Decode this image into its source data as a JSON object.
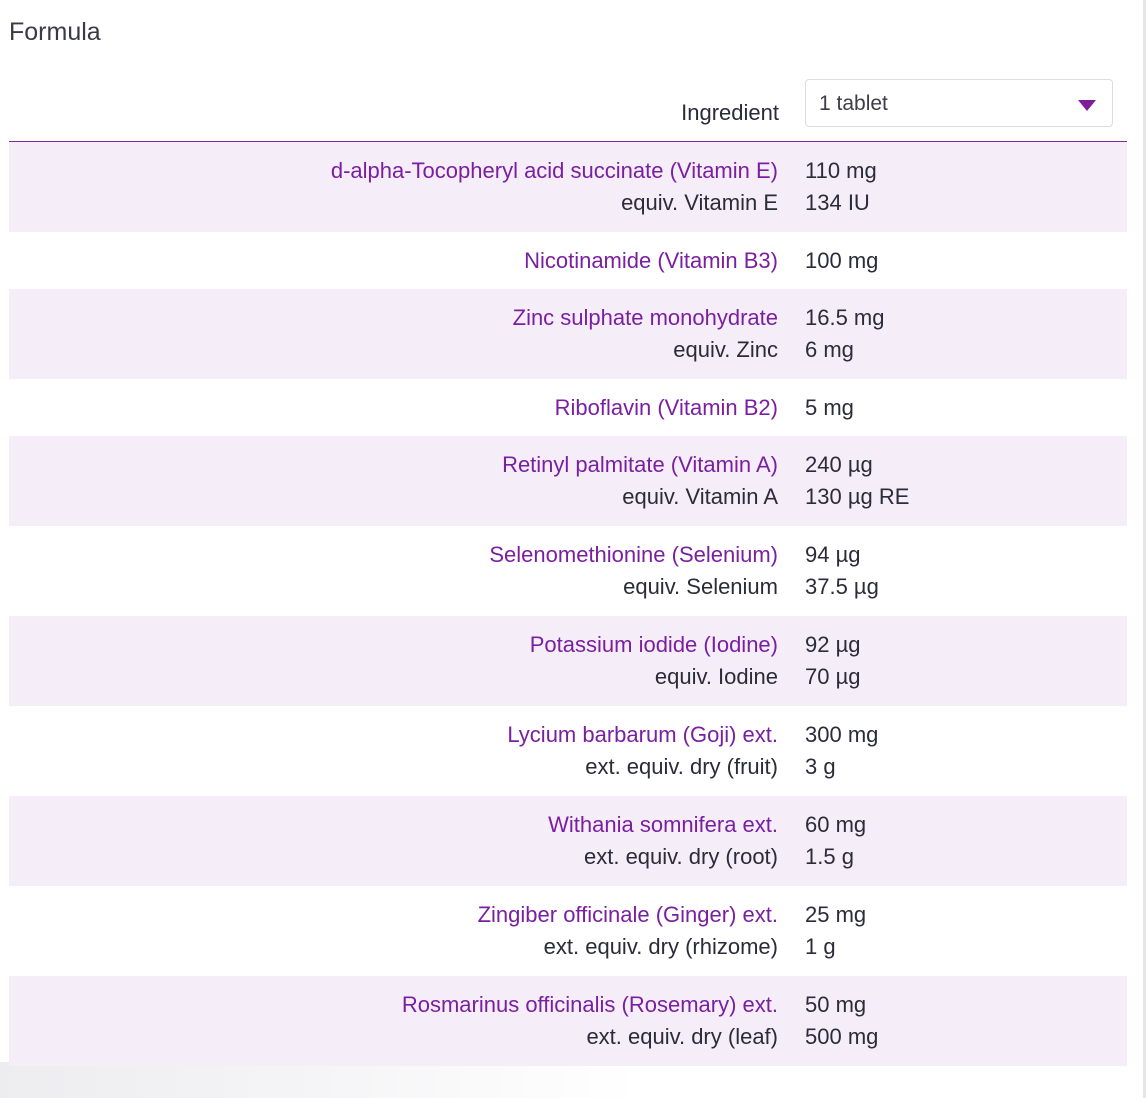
{
  "section_title": "Formula",
  "header": {
    "column_label": "Ingredient",
    "dose_select_value": "1 tablet"
  },
  "colors": {
    "accent": "#7a1fa2",
    "row_shade": "#f5eef8",
    "text": "#2b2b3a"
  },
  "rows": [
    {
      "name": "d-alpha-Tocopheryl acid succinate (Vitamin E)",
      "amount": "110 mg",
      "equiv_label": "equiv. Vitamin E",
      "equiv_amount": "134 IU"
    },
    {
      "name": "Nicotinamide (Vitamin B3)",
      "amount": "100 mg"
    },
    {
      "name": "Zinc sulphate monohydrate",
      "amount": "16.5 mg",
      "equiv_label": "equiv. Zinc",
      "equiv_amount": "6 mg"
    },
    {
      "name": "Riboflavin (Vitamin B2)",
      "amount": "5 mg"
    },
    {
      "name": "Retinyl palmitate (Vitamin A)",
      "amount": "240 µg",
      "equiv_label": "equiv. Vitamin A",
      "equiv_amount": "130 µg RE"
    },
    {
      "name": "Selenomethionine (Selenium)",
      "amount": "94 µg",
      "equiv_label": "equiv. Selenium",
      "equiv_amount": "37.5 µg"
    },
    {
      "name": "Potassium iodide (Iodine)",
      "amount": "92 µg",
      "equiv_label": "equiv. Iodine",
      "equiv_amount": "70 µg"
    },
    {
      "name": "Lycium barbarum (Goji) ext.",
      "amount": "300 mg",
      "equiv_label": "ext. equiv. dry (fruit)",
      "equiv_amount": "3 g"
    },
    {
      "name": "Withania somnifera ext.",
      "amount": "60 mg",
      "equiv_label": "ext. equiv. dry (root)",
      "equiv_amount": "1.5 g"
    },
    {
      "name": "Zingiber officinale (Ginger) ext.",
      "amount": "25 mg",
      "equiv_label": "ext. equiv. dry (rhizome)",
      "equiv_amount": "1 g"
    },
    {
      "name": "Rosmarinus officinalis (Rosemary) ext.",
      "amount": "50 mg",
      "equiv_label": "ext. equiv. dry (leaf)",
      "equiv_amount": "500 mg"
    }
  ]
}
